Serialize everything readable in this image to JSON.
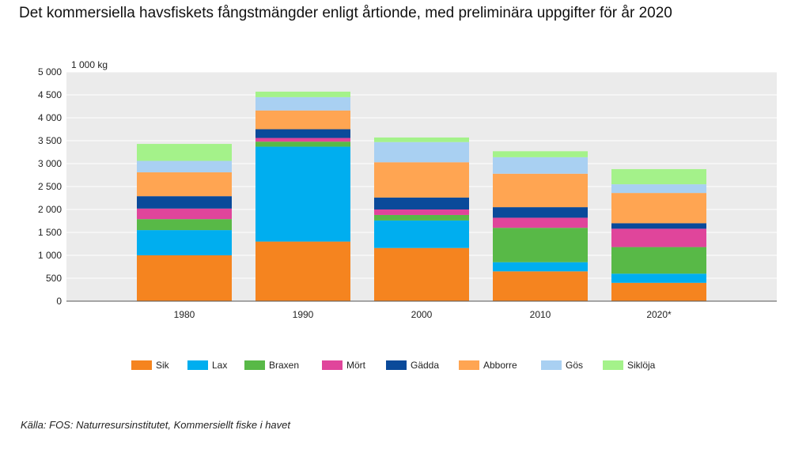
{
  "title": "Det kommersiella havsfiskets fångstmängder enligt årtionde, med preliminära uppgifter för år 2020",
  "source": "Källa: FOS: Naturresursinstitutet, Kommersiellt fiske i havet",
  "chart_data": {
    "type": "bar",
    "stacked": true,
    "title": "Det kommersiella havsfiskets fångstmängder enligt årtionde, med preliminära uppgifter för år 2020",
    "ylabel": "1 000 kg",
    "xlabel": "",
    "ylim": [
      0,
      5000
    ],
    "yticks": [
      0,
      500,
      1000,
      1500,
      2000,
      2500,
      3000,
      3500,
      4000,
      4500,
      5000
    ],
    "ytick_labels": [
      "0",
      "500",
      "1 000",
      "1 500",
      "2 000",
      "2 500",
      "3 000",
      "3 500",
      "4 000",
      "4 500",
      "5 000"
    ],
    "categories": [
      "1980",
      "1990",
      "2000",
      "2010",
      "2020*"
    ],
    "grid": true,
    "legend_position": "bottom",
    "series": [
      {
        "name": "Sik",
        "color": "#F5841F",
        "values": [
          1000,
          1300,
          1160,
          650,
          400
        ]
      },
      {
        "name": "Lax",
        "color": "#00AEEF",
        "values": [
          550,
          2070,
          600,
          200,
          200
        ]
      },
      {
        "name": "Braxen",
        "color": "#58B947",
        "values": [
          240,
          110,
          120,
          750,
          580
        ]
      },
      {
        "name": "Mört",
        "color": "#E0459B",
        "values": [
          230,
          80,
          120,
          220,
          400
        ]
      },
      {
        "name": "Gädda",
        "color": "#0A4A9A",
        "values": [
          270,
          190,
          260,
          230,
          120
        ]
      },
      {
        "name": "Abborre",
        "color": "#FFA552",
        "values": [
          520,
          410,
          770,
          730,
          660
        ]
      },
      {
        "name": "Gös",
        "color": "#A9D0F2",
        "values": [
          250,
          290,
          440,
          360,
          190
        ]
      },
      {
        "name": "Siklöja",
        "color": "#A4F28A",
        "values": [
          370,
          120,
          100,
          130,
          330
        ]
      }
    ]
  }
}
